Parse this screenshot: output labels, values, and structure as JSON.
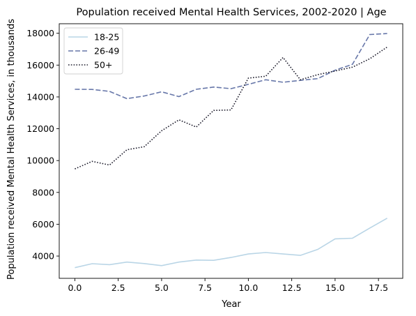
{
  "chart_data": {
    "type": "line",
    "title": "Population received Mental Health Services, 2002-2020 | Age",
    "xlabel": "Year",
    "ylabel": "Population received Mental Health Services, in thousands",
    "xlim": [
      -0.9,
      18.9
    ],
    "ylim": [
      2600,
      18600
    ],
    "xticks": [
      0.0,
      2.5,
      5.0,
      7.5,
      10.0,
      12.5,
      15.0,
      17.5
    ],
    "xtick_labels": [
      "0.0",
      "2.5",
      "5.0",
      "7.5",
      "10.0",
      "12.5",
      "15.0",
      "17.5"
    ],
    "yticks": [
      4000,
      6000,
      8000,
      10000,
      12000,
      14000,
      16000,
      18000
    ],
    "ytick_labels": [
      "4000",
      "6000",
      "8000",
      "10000",
      "12000",
      "14000",
      "16000",
      "18000"
    ],
    "grid": false,
    "legend_position": "top-left",
    "x": [
      0,
      1,
      2,
      3,
      4,
      5,
      6,
      7,
      8,
      9,
      10,
      11,
      12,
      13,
      14,
      15,
      16,
      17,
      18
    ],
    "series": [
      {
        "name": "18-25",
        "color": "#b9d5e6",
        "dash": "solid",
        "values": [
          3270,
          3520,
          3460,
          3620,
          3530,
          3400,
          3620,
          3750,
          3730,
          3910,
          4130,
          4220,
          4130,
          4040,
          4420,
          5080,
          5120,
          5760,
          6380
        ]
      },
      {
        "name": "26-49",
        "color": "#6777a9",
        "dash": "dashed",
        "values": [
          14480,
          14470,
          14350,
          13890,
          14060,
          14320,
          14020,
          14480,
          14620,
          14520,
          14790,
          15080,
          14920,
          15040,
          15150,
          15680,
          16050,
          17920,
          17980
        ]
      },
      {
        "name": "50+",
        "color": "#1c1b2b",
        "dash": "dotted",
        "values": [
          9480,
          9950,
          9720,
          10680,
          10870,
          11870,
          12560,
          12110,
          13150,
          13180,
          15180,
          15300,
          16480,
          15080,
          15400,
          15630,
          15870,
          16400,
          17130
        ]
      }
    ]
  }
}
